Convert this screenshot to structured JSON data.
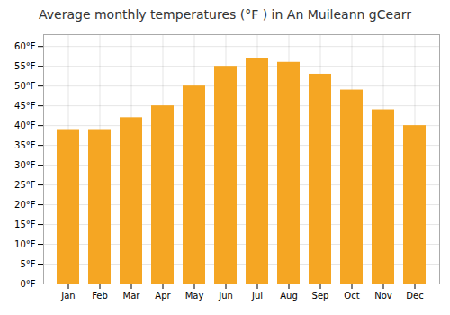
{
  "chart_data": {
    "type": "bar",
    "title": "Average monthly temperatures (°F ) in An Muileann gCearr",
    "categories": [
      "Jan",
      "Feb",
      "Mar",
      "Apr",
      "May",
      "Jun",
      "Jul",
      "Aug",
      "Sep",
      "Oct",
      "Nov",
      "Dec"
    ],
    "values": [
      39,
      39,
      42,
      45,
      50,
      55,
      57,
      56,
      53,
      49,
      44,
      40
    ],
    "color": "#F5A623",
    "ylim": [
      0,
      63
    ],
    "yticks": [
      {
        "value": 0,
        "label": "0°F"
      },
      {
        "value": 5,
        "label": "5°F"
      },
      {
        "value": 10,
        "label": "10°F"
      },
      {
        "value": 15,
        "label": "15°F"
      },
      {
        "value": 20,
        "label": "20°F"
      },
      {
        "value": 25,
        "label": "25°F"
      },
      {
        "value": 30,
        "label": "30°F"
      },
      {
        "value": 35,
        "label": "35°F"
      },
      {
        "value": 40,
        "label": "40°F"
      },
      {
        "value": 45,
        "label": "45°F"
      },
      {
        "value": 50,
        "label": "50°F"
      },
      {
        "value": 55,
        "label": "55°F"
      },
      {
        "value": 60,
        "label": "60°F"
      }
    ],
    "grid": true
  }
}
